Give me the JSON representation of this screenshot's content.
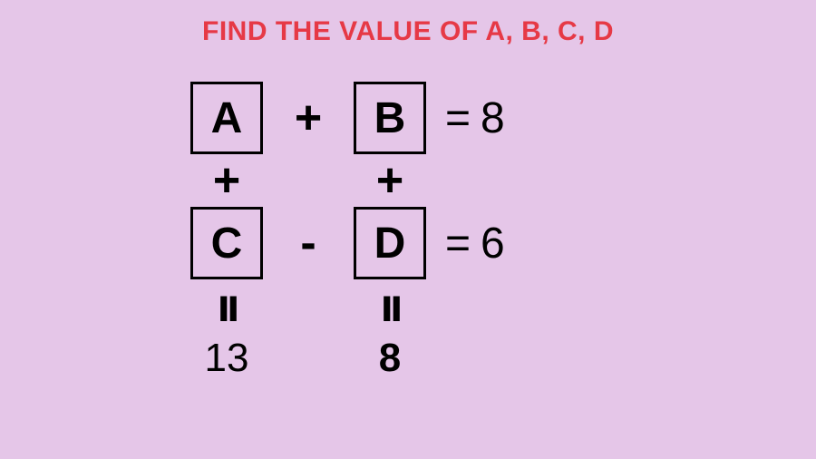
{
  "title": "FIND THE VALUE OF A, B, C, D",
  "colors": {
    "background": "#e5c6e8",
    "title_color": "#e63946",
    "text_color": "#000000",
    "box_border": "#000000"
  },
  "typography": {
    "title_fontsize": 30,
    "title_weight": 900,
    "box_fontsize": 48,
    "operator_fontsize": 52,
    "result_fontsize": 48
  },
  "puzzle": {
    "type": "infographic",
    "structure": "2x2 grid of boxed variables with row and column equations",
    "boxes": {
      "a": "A",
      "b": "B",
      "c": "C",
      "d": "D"
    },
    "row1": {
      "left": "A",
      "op": "+",
      "right": "B",
      "eq": "=",
      "result": "8"
    },
    "row2": {
      "left": "C",
      "op": "-",
      "right": "D",
      "eq": "=",
      "result": "6"
    },
    "col_op_left": "+",
    "col_op_right": "+",
    "col1": {
      "eq": "ıı",
      "result": "13"
    },
    "col2": {
      "eq": "ıı",
      "result": "8"
    },
    "box_style": {
      "width": 80,
      "height": 80,
      "border_width": 3,
      "border_color": "#000000"
    }
  }
}
